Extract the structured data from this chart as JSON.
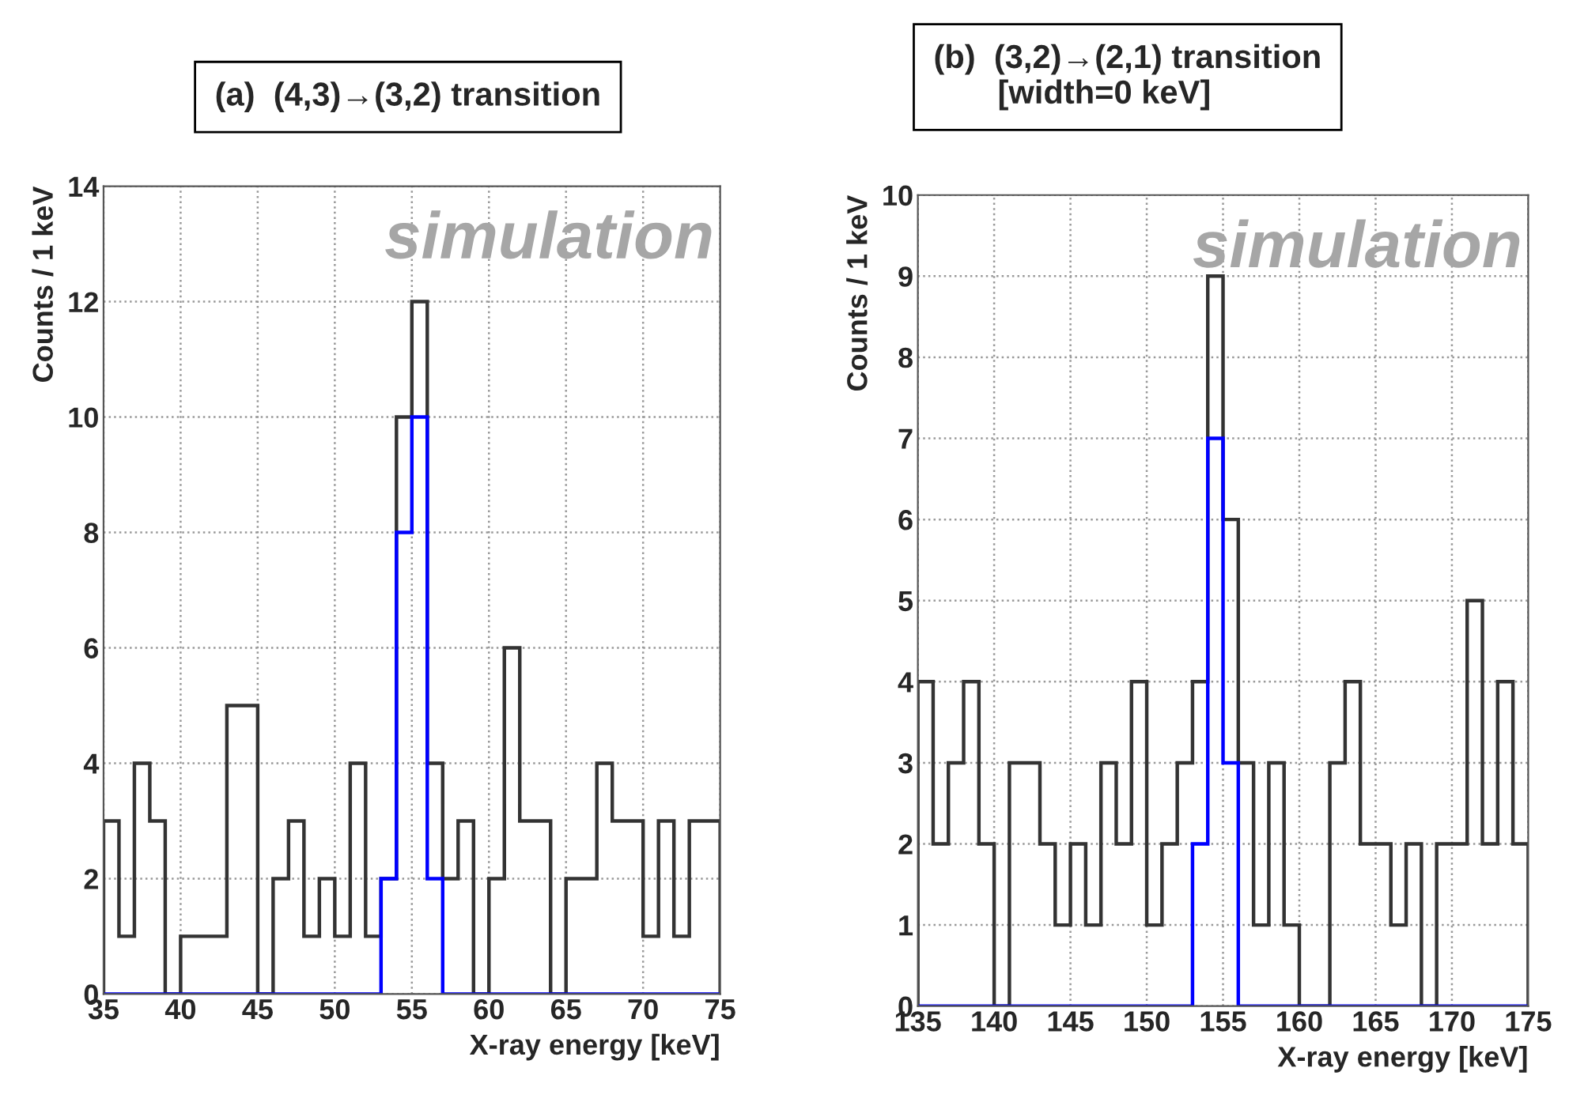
{
  "chart_data": [
    {
      "type": "histogram",
      "title": "(a)  (4,3)→(3,2) transition",
      "xlabel": "X-ray energy [keV]",
      "ylabel": "Counts / 1 keV",
      "annotations": [
        "simulation"
      ],
      "bins": [
        35,
        36,
        37,
        38,
        39,
        40,
        41,
        42,
        43,
        44,
        45,
        46,
        47,
        48,
        49,
        50,
        51,
        52,
        53,
        54,
        55,
        56,
        57,
        58,
        59,
        60,
        61,
        62,
        63,
        64,
        65,
        66,
        67,
        68,
        69,
        70,
        71,
        72,
        73,
        74,
        75
      ],
      "series": [
        {
          "color": "#333333",
          "values": [
            3,
            1,
            4,
            3,
            0,
            1,
            1,
            1,
            5,
            5,
            0,
            2,
            3,
            1,
            2,
            1,
            4,
            1,
            2,
            10,
            12,
            4,
            2,
            3,
            0,
            2,
            6,
            3,
            3,
            0,
            2,
            2,
            4,
            3,
            3,
            1,
            3,
            1,
            3,
            3
          ]
        },
        {
          "color": "#0000ff",
          "values": [
            0,
            0,
            0,
            0,
            0,
            0,
            0,
            0,
            0,
            0,
            0,
            0,
            0,
            0,
            0,
            0,
            0,
            0,
            2,
            8,
            10,
            2,
            0,
            0,
            0,
            0,
            0,
            0,
            0,
            0,
            0,
            0,
            0,
            0,
            0,
            0,
            0,
            0,
            0,
            0
          ]
        }
      ],
      "xlim": [
        35,
        75
      ],
      "xticks": [
        35,
        40,
        45,
        50,
        55,
        60,
        65,
        70,
        75
      ],
      "ylim": [
        0,
        14
      ],
      "yticks": [
        0,
        2,
        4,
        6,
        8,
        10,
        12,
        14
      ],
      "grid": true
    },
    {
      "type": "histogram",
      "title": "(b)  (3,2)→(2,1) transition\n       [width=0 keV]",
      "xlabel": "X-ray energy [keV]",
      "ylabel": "Counts / 1 keV",
      "annotations": [
        "simulation"
      ],
      "bins": [
        135,
        136,
        137,
        138,
        139,
        140,
        141,
        142,
        143,
        144,
        145,
        146,
        147,
        148,
        149,
        150,
        151,
        152,
        153,
        154,
        155,
        156,
        157,
        158,
        159,
        160,
        161,
        162,
        163,
        164,
        165,
        166,
        167,
        168,
        169,
        170,
        171,
        172,
        173,
        174,
        175
      ],
      "series": [
        {
          "color": "#333333",
          "values": [
            4,
            2,
            3,
            4,
            2,
            0,
            3,
            3,
            2,
            1,
            2,
            1,
            3,
            2,
            4,
            1,
            2,
            3,
            4,
            9,
            6,
            3,
            1,
            3,
            1,
            0,
            0,
            3,
            4,
            2,
            2,
            1,
            2,
            0,
            2,
            2,
            5,
            2,
            4,
            2
          ]
        },
        {
          "color": "#0000ff",
          "values": [
            0,
            0,
            0,
            0,
            0,
            0,
            0,
            0,
            0,
            0,
            0,
            0,
            0,
            0,
            0,
            0,
            0,
            0,
            2,
            7,
            3,
            0,
            0,
            0,
            0,
            0,
            0,
            0,
            0,
            0,
            0,
            0,
            0,
            0,
            0,
            0,
            0,
            0,
            0,
            0
          ]
        }
      ],
      "xlim": [
        135,
        175
      ],
      "xticks": [
        135,
        140,
        145,
        150,
        155,
        160,
        165,
        170,
        175
      ],
      "ylim": [
        0,
        10
      ],
      "yticks": [
        0,
        1,
        2,
        3,
        4,
        5,
        6,
        7,
        8,
        9,
        10
      ],
      "grid": true
    }
  ]
}
